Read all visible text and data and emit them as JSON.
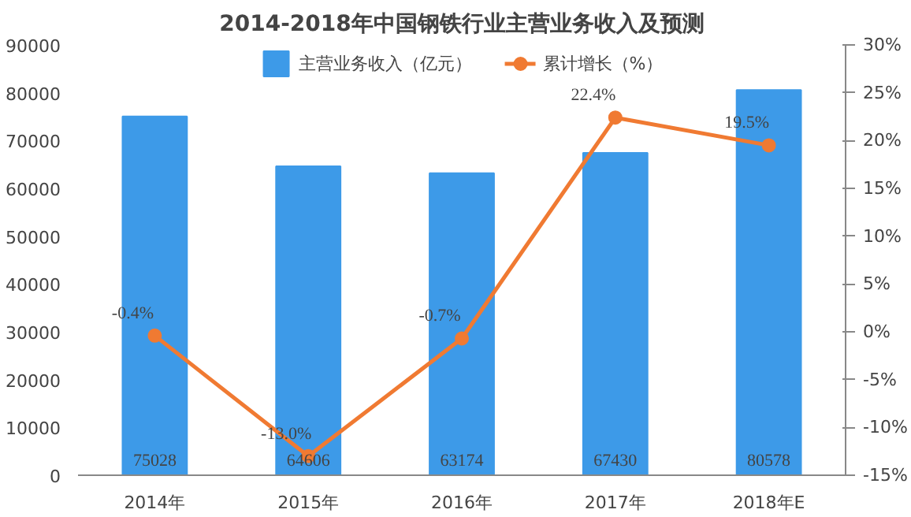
{
  "chart_data": {
    "type": "bar",
    "title": "2014-2018年中国钢铁行业主营业务收入及预测",
    "categories": [
      "2014年",
      "2015年",
      "2016年",
      "2017年",
      "2018年E"
    ],
    "series": [
      {
        "name": "主营业务收入（亿元）",
        "color": "#3d9ae8",
        "values": [
          75028,
          64606,
          63174,
          67430,
          80578
        ],
        "value_labels": [
          "75028",
          "64606",
          "63174",
          "67430",
          "80578"
        ]
      },
      {
        "name": "累计增长（%）",
        "type": "line",
        "axis": "y2",
        "color": "#f07a32",
        "marker": "circle",
        "values": [
          -0.4,
          -13.0,
          -0.7,
          22.4,
          19.5
        ],
        "value_labels": [
          "-0.4%",
          "-13.0%",
          "-0.7%",
          "22.4%",
          "19.5%"
        ]
      }
    ],
    "ylim": [
      0,
      90000
    ],
    "yticks": [
      0,
      10000,
      20000,
      30000,
      40000,
      50000,
      60000,
      70000,
      80000,
      90000
    ],
    "y2lim": [
      -15,
      30
    ],
    "y2ticks": [
      {
        "value": -15,
        "label": "-15%"
      },
      {
        "value": -10,
        "label": "-10%"
      },
      {
        "value": -5,
        "label": "-5%"
      },
      {
        "value": 0,
        "label": "0%"
      },
      {
        "value": 5,
        "label": "5%"
      },
      {
        "value": 10,
        "label": "10%"
      },
      {
        "value": 15,
        "label": "15%"
      },
      {
        "value": 20,
        "label": "20%"
      },
      {
        "value": 25,
        "label": "25%"
      },
      {
        "value": 30,
        "label": "30%"
      }
    ],
    "grid": false,
    "legend": "top"
  }
}
